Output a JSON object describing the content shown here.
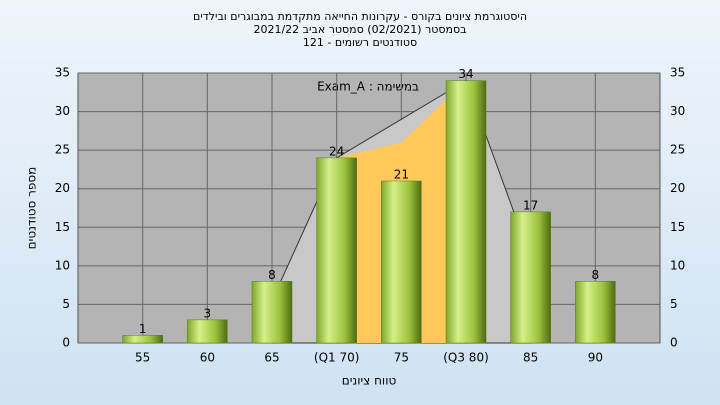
{
  "chart_data": {
    "type": "bar",
    "title": [
      "היסטוגרמת ציונים בקורס - עקרונות החייאה מתקדמת במבוגרים ובילדים",
      "בסמסטר  (02/2021)  סמסטר אביב 2021/22",
      "סטודנטים רשומים - 121"
    ],
    "annotation": "במשימה : Exam_A",
    "x_label": "טווח ציונים",
    "y_label": "מספר סטודנטים",
    "categories": [
      "55",
      "60",
      "65",
      "(Q1 70)",
      "75",
      "(Q3 80)",
      "85",
      "90"
    ],
    "values": [
      1,
      3,
      8,
      24,
      21,
      34,
      17,
      8
    ],
    "color": "#9bc23c",
    "areas": [
      {
        "color": "#c8c8c8",
        "values": [
          null,
          null,
          5.5,
          24,
          null,
          34,
          11,
          null
        ]
      },
      {
        "color": "#ffc85a",
        "values": [
          null,
          null,
          null,
          24,
          26,
          34,
          null,
          null
        ]
      }
    ],
    "ylim": [
      0,
      35
    ],
    "yticks": [
      0,
      5,
      10,
      15,
      20,
      25,
      30,
      35
    ],
    "grid": true
  }
}
